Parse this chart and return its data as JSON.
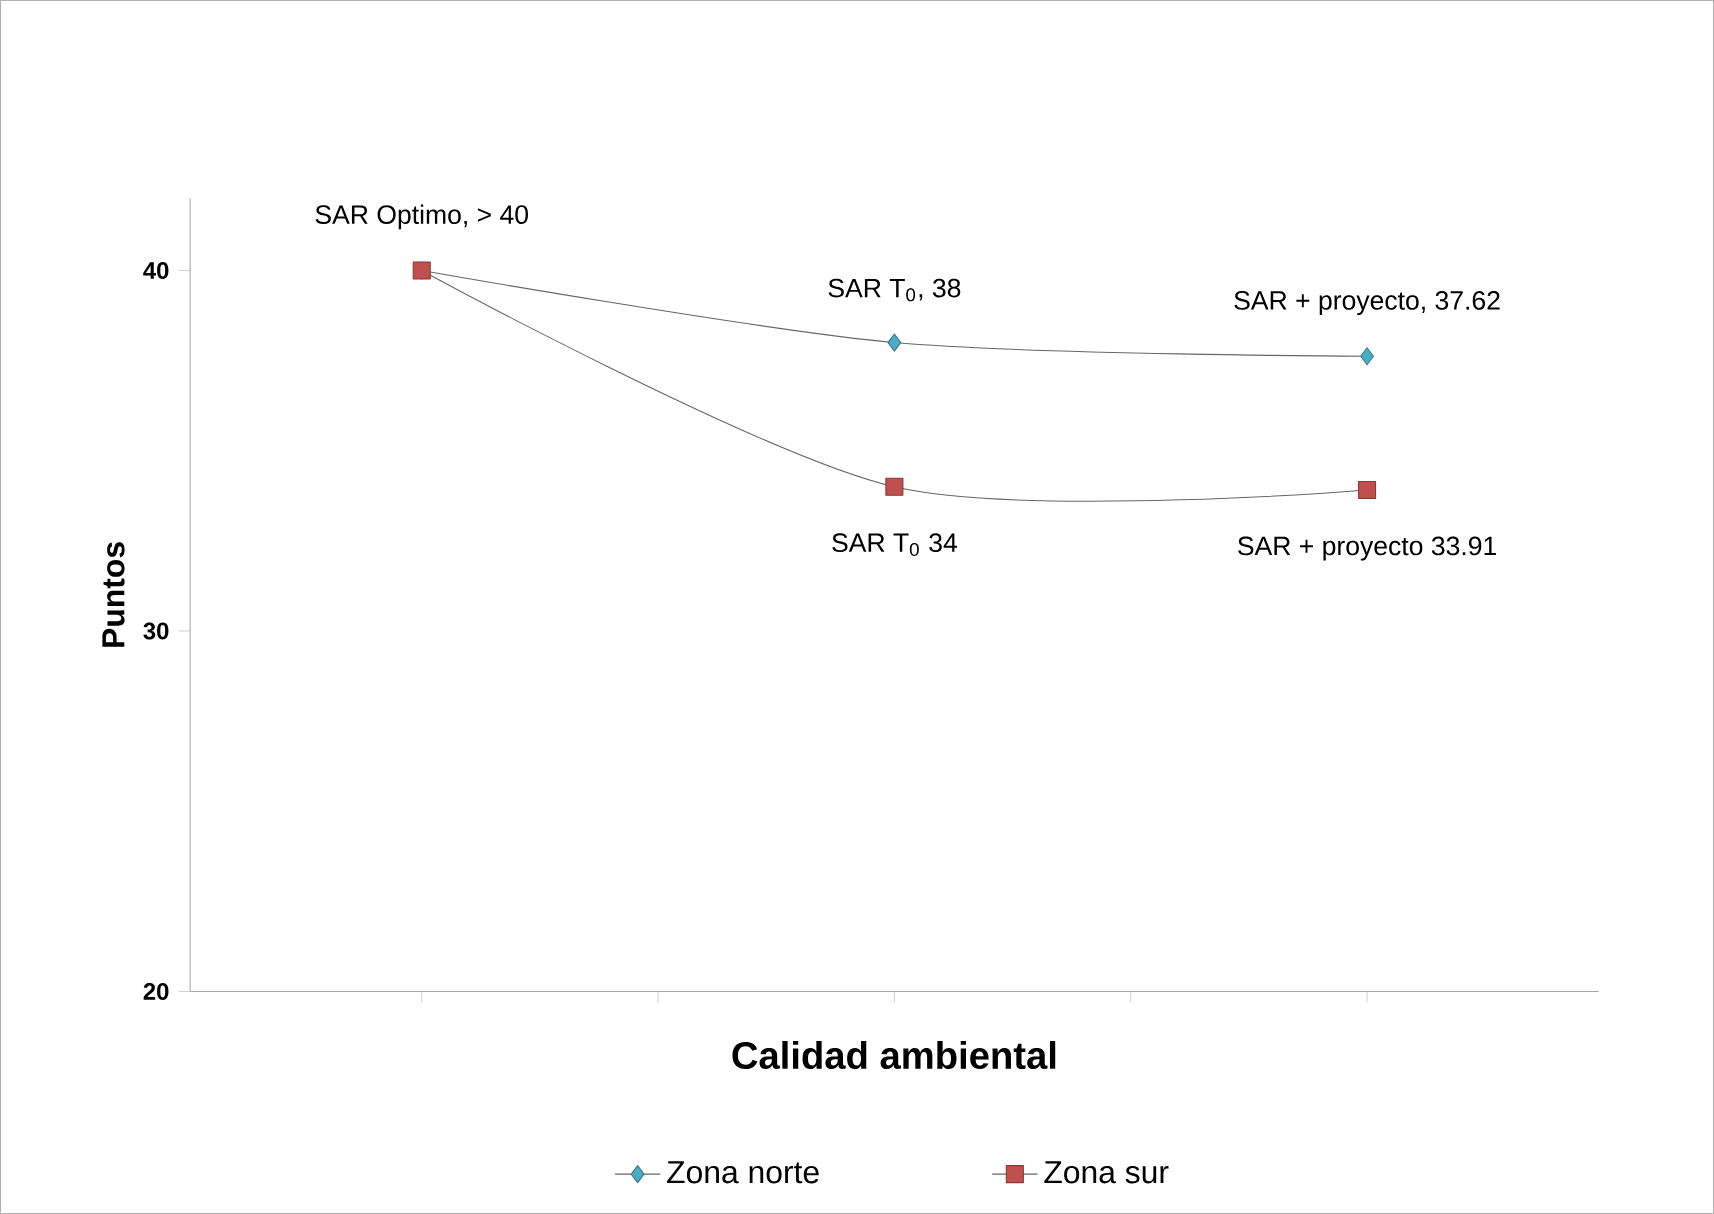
{
  "chart_data": {
    "type": "line",
    "xlabel": "Calidad ambiental",
    "ylabel": "Puntos",
    "categories": [
      null,
      null,
      null
    ],
    "ylim": [
      20,
      42
    ],
    "yticks": [
      20,
      30,
      40
    ],
    "grid": false,
    "legend": "bottom",
    "line_style": "solid",
    "series": [
      {
        "name": "Zona norte",
        "color": "#4bacc6",
        "marker": "diamond",
        "values": [
          40,
          38,
          37.62
        ]
      },
      {
        "name": "Zona sur",
        "color": "#c0504d",
        "marker": "square",
        "values": [
          40,
          34,
          33.91
        ]
      }
    ],
    "annotations": [
      {
        "text": "SAR Optimo, > 40",
        "y": 40
      },
      {
        "text": "SAR T$_{0}$, 38",
        "y": 38
      },
      {
        "text": "SAR + proyecto, 37.62",
        "y": 37.62
      },
      {
        "text": "SAR T$_{0}$ 34",
        "y": 34
      },
      {
        "text": "SAR + proyecto 33.91",
        "y": 33.91
      }
    ]
  }
}
